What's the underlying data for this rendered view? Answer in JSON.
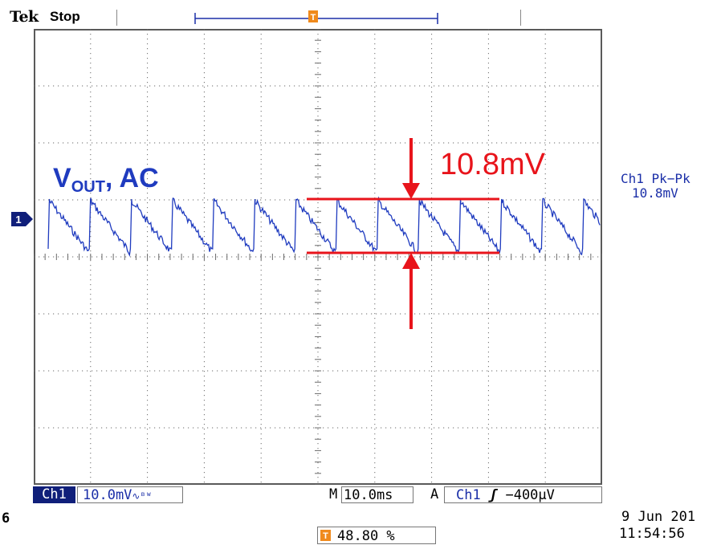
{
  "header": {
    "brand": "Tek",
    "acq_state": "Stop"
  },
  "trace": {
    "label": "V",
    "label_sub": "OUT",
    "label_suffix": ", AC",
    "color": "#1f3bbf",
    "channel_marker": "1"
  },
  "annotation": {
    "ripple": "10.8mV",
    "color": "#e8141b"
  },
  "measurement": {
    "title": "Ch1 Pk−Pk",
    "value": "10.8mV"
  },
  "status_bar": {
    "channel": "Ch1",
    "scale": "10.0mV",
    "scale_suffix": "∿ᴮᵂ",
    "timebase_prefix": "M",
    "timebase": "10.0ms",
    "trigger_mode": "A",
    "trigger_source": "Ch1",
    "trigger_edge": "ʃ",
    "trigger_level": "−400µV"
  },
  "footer": {
    "left_number": "6",
    "date": "9 Jun  201",
    "time": "11:54:56",
    "trigger_position": "48.80 %"
  },
  "colors": {
    "grid": "#6a6a6a",
    "marker_orange": "#f08a1c",
    "waveform": "#1f3bbf",
    "annotation": "#e8141b",
    "status_blue": "#1b2fa8"
  }
}
